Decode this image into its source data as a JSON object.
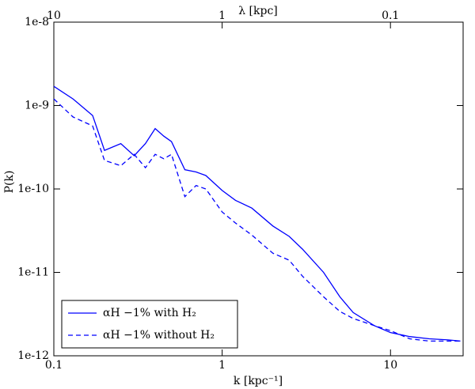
{
  "chart_data": {
    "type": "line",
    "xlabel": "k [kpc⁻¹]",
    "ylabel": "P(k)",
    "x2label": "λ [kpc]",
    "xscale": "log",
    "yscale": "log",
    "x": [
      0.1,
      0.13,
      0.17,
      0.2,
      0.25,
      0.3,
      0.35,
      0.4,
      0.45,
      0.5,
      0.6,
      0.7,
      0.8,
      1,
      1.2,
      1.5,
      2,
      2.5,
      3,
      4,
      5,
      6,
      8,
      10,
      13,
      17,
      22,
      26
    ],
    "series": [
      {
        "name": "αH −1% with H₂",
        "color": "#0000ff",
        "dash": "solid",
        "values": [
          1.7e-09,
          1.2e-09,
          7.6e-10,
          2.9e-10,
          3.5e-10,
          2.5e-10,
          3.5e-10,
          5.3e-10,
          4.3e-10,
          3.7e-10,
          1.7e-10,
          1.6e-10,
          1.45e-10,
          9.6e-11,
          7.3e-11,
          5.9e-11,
          3.6e-11,
          2.7e-11,
          1.9e-11,
          1e-11,
          5.1e-12,
          3.3e-12,
          2.3e-12,
          1.9e-12,
          1.7e-12,
          1.6e-12,
          1.55e-12,
          1.5e-12
        ]
      },
      {
        "name": "αH −1% without H₂",
        "color": "#0000ff",
        "dash": "dashed",
        "values": [
          1.2e-09,
          7.3e-10,
          5.7e-10,
          2.2e-10,
          1.9e-10,
          2.6e-10,
          1.8e-10,
          2.6e-10,
          2.3e-10,
          2.6e-10,
          8.1e-11,
          1.1e-10,
          1e-10,
          5.3e-11,
          3.9e-11,
          2.8e-11,
          1.7e-11,
          1.4e-11,
          9e-12,
          5.1e-12,
          3.4e-12,
          2.8e-12,
          2.3e-12,
          2e-12,
          1.6e-12,
          1.5e-12,
          1.5e-12,
          1.5e-12
        ]
      }
    ],
    "xlim": [
      0.1,
      27
    ],
    "xticks": [
      0.1,
      1,
      10
    ],
    "x2lim": [
      10,
      0.037
    ],
    "x2ticks": [
      10,
      1,
      0.1
    ],
    "ylim": [
      1e-12,
      1e-08
    ],
    "yticks": [
      {
        "value": 1e-12,
        "label": "1e-12"
      },
      {
        "value": 1e-11,
        "label": "1e-11"
      },
      {
        "value": 1e-10,
        "label": "1e-10"
      },
      {
        "value": 1e-09,
        "label": "1e-9"
      },
      {
        "value": 1e-08,
        "label": "1e-8"
      }
    ],
    "legend": "lower left"
  }
}
